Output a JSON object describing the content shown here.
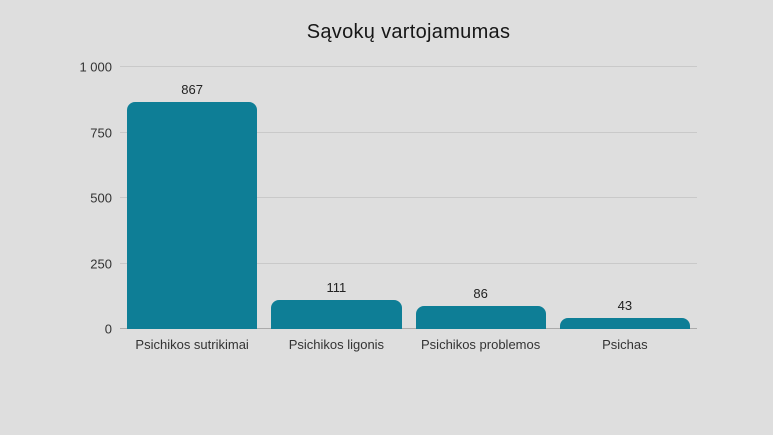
{
  "chart_data": {
    "type": "bar",
    "title": "Sąvokų vartojamumas",
    "categories": [
      "Psichikos sutrikimai",
      "Psichikos ligonis",
      "Psichikos problemos",
      "Psichas"
    ],
    "values": [
      867,
      111,
      86,
      43
    ],
    "value_labels": [
      "867",
      "111",
      "86",
      "43"
    ],
    "xlabel": "",
    "ylabel": "",
    "ylim": [
      0,
      1000
    ],
    "yticks": [
      0,
      250,
      500,
      750,
      1000
    ],
    "ytick_labels": [
      "0",
      "250",
      "500",
      "750",
      "1 000"
    ],
    "grid": true,
    "legend": "none"
  },
  "colors": {
    "background": "#dedede",
    "bar": "#0e7e96",
    "gridline": "#c9c9c9",
    "baseline": "#ababab",
    "title_text": "#161616",
    "tick_text": "#333333",
    "value_text": "#222222"
  }
}
